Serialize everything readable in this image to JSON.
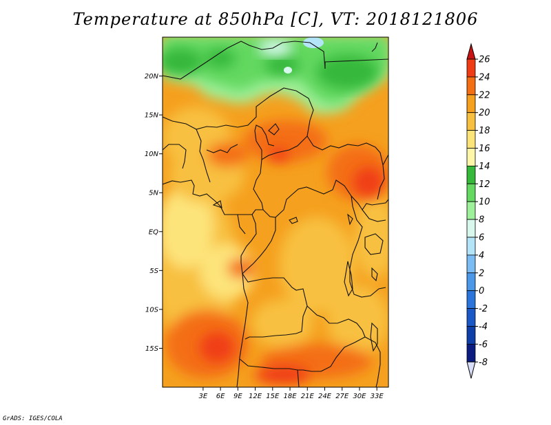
{
  "title": "Temperature at 850hPa [C], VT: 2018121806",
  "credit": "GrADS: IGES/COLA",
  "map": {
    "variable": "Temperature at 850hPa",
    "units": "C",
    "valid_time": "2018121806",
    "lon_range": [
      -4,
      35
    ],
    "lat_range": [
      -20,
      25
    ],
    "lat_ticks": [
      {
        "value": 20,
        "label": "20N"
      },
      {
        "value": 15,
        "label": "15N"
      },
      {
        "value": 10,
        "label": "10N"
      },
      {
        "value": 5,
        "label": "5N"
      },
      {
        "value": 0,
        "label": "EQ"
      },
      {
        "value": -5,
        "label": "5S"
      },
      {
        "value": -10,
        "label": "10S"
      },
      {
        "value": -15,
        "label": "15S"
      }
    ],
    "lon_ticks": [
      {
        "value": 3,
        "label": "3E"
      },
      {
        "value": 6,
        "label": "6E"
      },
      {
        "value": 9,
        "label": "9E"
      },
      {
        "value": 12,
        "label": "12E"
      },
      {
        "value": 15,
        "label": "15E"
      },
      {
        "value": 18,
        "label": "18E"
      },
      {
        "value": 21,
        "label": "21E"
      },
      {
        "value": 24,
        "label": "24E"
      },
      {
        "value": 27,
        "label": "27E"
      },
      {
        "value": 30,
        "label": "30E"
      },
      {
        "value": 33,
        "label": "33E"
      }
    ]
  },
  "colorbar": {
    "levels": [
      {
        "label": "26",
        "color": "#d81e1e"
      },
      {
        "label": "24",
        "color": "#f03c14"
      },
      {
        "label": "22",
        "color": "#f46e14"
      },
      {
        "label": "20",
        "color": "#f5a01e"
      },
      {
        "label": "18",
        "color": "#f8c040"
      },
      {
        "label": "16",
        "color": "#fde47a"
      },
      {
        "label": "14",
        "color": "#fef6a8"
      },
      {
        "label": "12",
        "color": "#36b83a"
      },
      {
        "label": "10",
        "color": "#64d860"
      },
      {
        "label": "8",
        "color": "#9ef09a"
      },
      {
        "label": "6",
        "color": "#d8f8ee"
      },
      {
        "label": "4",
        "color": "#b4e4f8"
      },
      {
        "label": "2",
        "color": "#7cbcf4"
      },
      {
        "label": "0",
        "color": "#4c98e8"
      },
      {
        "label": "-2",
        "color": "#2a74dc"
      },
      {
        "label": "-4",
        "color": "#1a58c8"
      },
      {
        "label": "-6",
        "color": "#0e3ea8"
      },
      {
        "label": "-8",
        "color": "#0a1c80"
      }
    ],
    "under_color": "#d8ddf8",
    "over_color": "#c81414"
  }
}
